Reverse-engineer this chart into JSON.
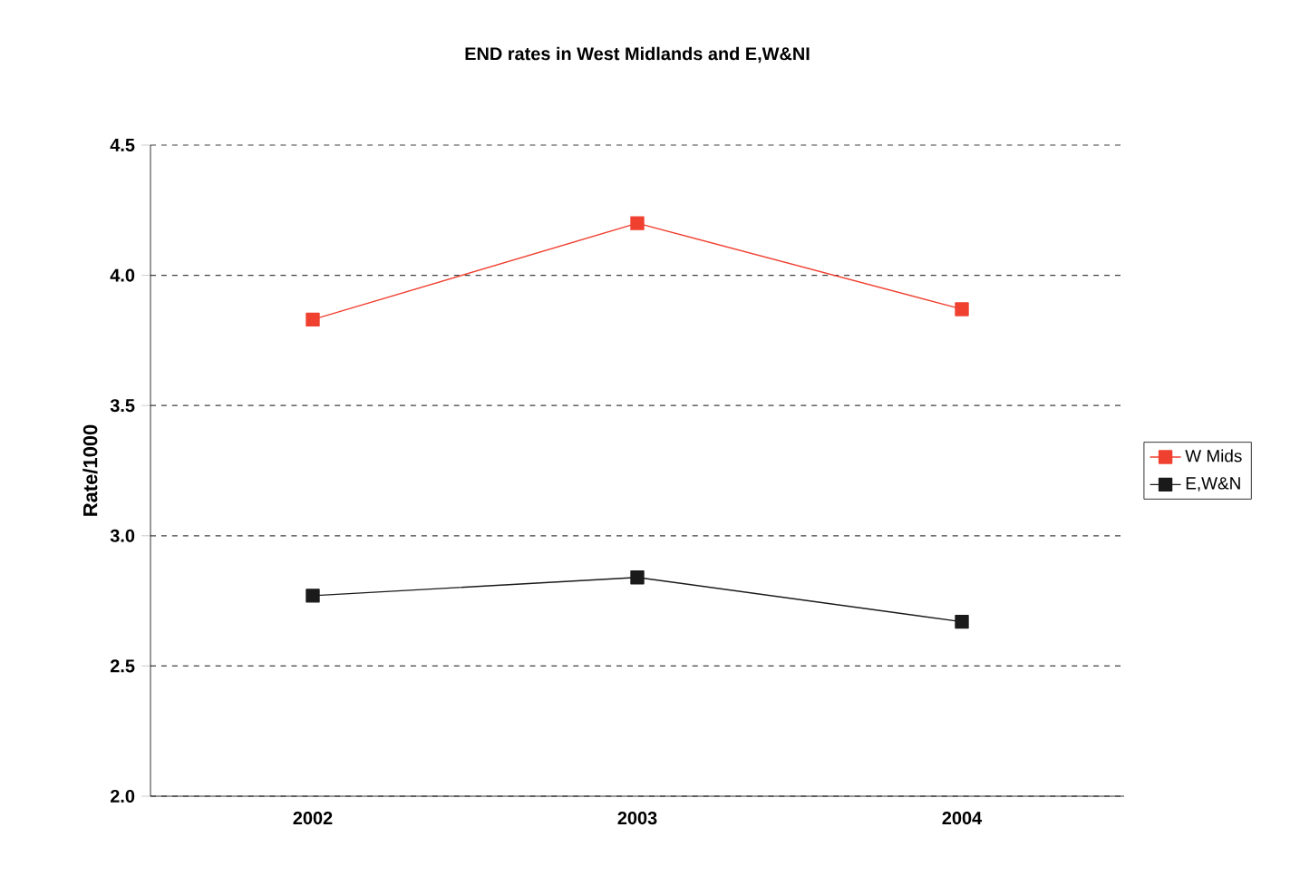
{
  "chart_data": {
    "type": "line",
    "title": "END rates in West Midlands and E,W&NI",
    "ylabel": "Rate/1000",
    "categories": [
      "2002",
      "2003",
      "2004"
    ],
    "series": [
      {
        "name": "W Mids",
        "color": "#f04030",
        "values": [
          3.83,
          4.2,
          3.87
        ]
      },
      {
        "name": "E,W&N",
        "color": "#1a1a1a",
        "values": [
          2.77,
          2.84,
          2.67
        ]
      }
    ],
    "ylim": [
      2.0,
      4.5
    ],
    "yticks": [
      {
        "value": 2.0,
        "label": "2.0"
      },
      {
        "value": 2.5,
        "label": "2.5"
      },
      {
        "value": 3.0,
        "label": "3.0"
      },
      {
        "value": 3.5,
        "label": "3.5"
      },
      {
        "value": 4.0,
        "label": "4.0"
      },
      {
        "value": 4.5,
        "label": "4.5"
      }
    ],
    "grid": "y",
    "legend": "right",
    "marker": "square",
    "line_style": "solid"
  }
}
